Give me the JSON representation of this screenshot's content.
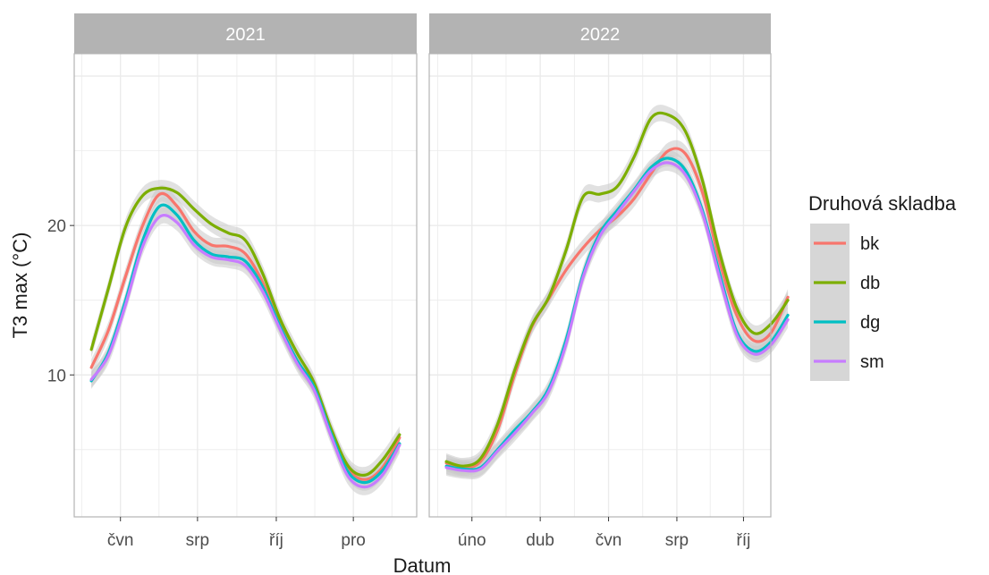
{
  "chart_data": {
    "type": "line",
    "xlabel": "Datum",
    "ylabel": "T3 max (°C)",
    "ylim": [
      0.5,
      31.5
    ],
    "yticks": [
      10,
      20
    ],
    "grid": true,
    "legend": {
      "title": "Druhová skladba",
      "position": "right",
      "entries": [
        "bk",
        "db",
        "dg",
        "sm"
      ]
    },
    "colors": {
      "bk": "#F8766D",
      "db": "#7CAE00",
      "dg": "#00BFC4",
      "sm": "#C77CFF",
      "strip": "#B3B3B3",
      "panel_border": "#B3B3B3",
      "grid": "#EBEBEB",
      "ribbon": "#C8C8C8"
    },
    "panels": [
      {
        "title": "2021",
        "xlim": [
          0,
          10
        ],
        "x_ticks": [
          {
            "label": "čvn",
            "x": 1.35
          },
          {
            "label": "srp",
            "x": 3.6
          },
          {
            "label": "říj",
            "x": 5.9
          },
          {
            "label": "pro",
            "x": 8.15
          }
        ],
        "series": [
          {
            "name": "bk",
            "x": [
              0.5,
              1.0,
              1.5,
              2.0,
              2.5,
              3.0,
              3.5,
              4.0,
              4.5,
              5.0,
              5.5,
              6.0,
              6.5,
              7.0,
              7.5,
              8.0,
              8.5,
              9.0,
              9.5
            ],
            "y": [
              10.5,
              13.0,
              16.6,
              20.0,
              22.1,
              21.3,
              19.6,
              18.7,
              18.6,
              18.1,
              16.2,
              13.4,
              11.0,
              9.3,
              6.2,
              3.7,
              3.0,
              3.8,
              5.8
            ]
          },
          {
            "name": "db",
            "x": [
              0.5,
              1.0,
              1.5,
              2.0,
              2.5,
              3.0,
              3.5,
              4.0,
              4.5,
              5.0,
              5.5,
              6.0,
              6.5,
              7.0,
              7.5,
              8.0,
              8.5,
              9.0,
              9.5
            ],
            "y": [
              11.7,
              15.8,
              19.9,
              22.0,
              22.5,
              22.2,
              21.1,
              20.1,
              19.5,
              19.0,
              16.8,
              13.8,
              11.5,
              9.5,
              6.4,
              3.9,
              3.3,
              4.3,
              6.0
            ]
          },
          {
            "name": "dg",
            "x": [
              0.5,
              1.0,
              1.5,
              2.0,
              2.5,
              3.0,
              3.5,
              4.0,
              4.5,
              5.0,
              5.5,
              6.0,
              6.5,
              7.0,
              7.5,
              8.0,
              8.5,
              9.0,
              9.5
            ],
            "y": [
              9.6,
              11.5,
              15.0,
              19.0,
              21.3,
              20.7,
              19.0,
              18.1,
              17.9,
              17.6,
              15.9,
              13.3,
              11.0,
              9.2,
              6.1,
              3.5,
              2.8,
              3.6,
              5.4
            ]
          },
          {
            "name": "sm",
            "x": [
              0.5,
              1.0,
              1.5,
              2.0,
              2.5,
              3.0,
              3.5,
              4.0,
              4.5,
              5.0,
              5.5,
              6.0,
              6.5,
              7.0,
              7.5,
              8.0,
              8.5,
              9.0,
              9.5
            ],
            "y": [
              9.7,
              11.3,
              14.7,
              18.6,
              20.6,
              20.2,
              18.7,
              17.9,
              17.7,
              17.3,
              15.6,
              13.1,
              10.8,
              9.0,
              5.9,
              3.2,
              2.5,
              3.3,
              5.3
            ]
          }
        ]
      },
      {
        "title": "2022",
        "xlim": [
          0,
          10
        ],
        "x_ticks": [
          {
            "label": "úno",
            "x": 1.25
          },
          {
            "label": "dub",
            "x": 3.25
          },
          {
            "label": "čvn",
            "x": 5.25
          },
          {
            "label": "srp",
            "x": 7.25
          },
          {
            "label": "říj",
            "x": 9.2
          }
        ],
        "series": [
          {
            "name": "bk",
            "x": [
              0.5,
              1.0,
              1.5,
              2.0,
              2.5,
              3.0,
              3.5,
              4.0,
              4.5,
              5.0,
              5.5,
              6.0,
              6.5,
              7.0,
              7.5,
              8.0,
              8.5,
              9.0,
              9.5,
              10.0,
              10.5
            ],
            "y": [
              4.1,
              3.8,
              4.2,
              6.3,
              10.0,
              13.2,
              15.1,
              17.0,
              18.5,
              19.7,
              20.6,
              21.8,
              23.5,
              25.0,
              24.8,
              22.2,
              17.6,
              14.0,
              12.3,
              12.8,
              15.2
            ]
          },
          {
            "name": "db",
            "x": [
              0.5,
              1.0,
              1.5,
              2.0,
              2.5,
              3.0,
              3.5,
              4.0,
              4.5,
              5.0,
              5.5,
              6.0,
              6.5,
              7.0,
              7.5,
              8.0,
              8.5,
              9.0,
              9.5,
              10.0,
              10.5
            ],
            "y": [
              4.2,
              3.9,
              4.4,
              6.7,
              10.3,
              13.3,
              15.2,
              18.3,
              21.9,
              22.1,
              22.6,
              24.6,
              27.2,
              27.4,
              26.3,
              23.0,
              18.2,
              14.5,
              12.8,
              13.4,
              15.0
            ]
          },
          {
            "name": "dg",
            "x": [
              0.5,
              1.0,
              1.5,
              2.0,
              2.5,
              3.0,
              3.5,
              4.0,
              4.5,
              5.0,
              5.5,
              6.0,
              6.5,
              7.0,
              7.5,
              8.0,
              8.5,
              9.0,
              9.5,
              10.0,
              10.5
            ],
            "y": [
              3.9,
              3.7,
              3.8,
              5.0,
              6.3,
              7.5,
              9.1,
              12.3,
              16.7,
              19.5,
              21.0,
              22.4,
              23.9,
              24.5,
              23.7,
              21.0,
              16.8,
              12.9,
              11.6,
              12.2,
              14.0
            ]
          },
          {
            "name": "sm",
            "x": [
              0.5,
              1.0,
              1.5,
              2.0,
              2.5,
              3.0,
              3.5,
              4.0,
              4.5,
              5.0,
              5.5,
              6.0,
              6.5,
              7.0,
              7.5,
              8.0,
              8.5,
              9.0,
              9.5,
              10.0,
              10.5
            ],
            "y": [
              3.8,
              3.6,
              3.7,
              4.9,
              6.1,
              7.4,
              8.9,
              12.0,
              16.5,
              19.3,
              20.8,
              22.3,
              23.7,
              24.2,
              23.4,
              20.8,
              16.5,
              12.7,
              11.4,
              12.0,
              13.7
            ]
          }
        ]
      }
    ]
  }
}
